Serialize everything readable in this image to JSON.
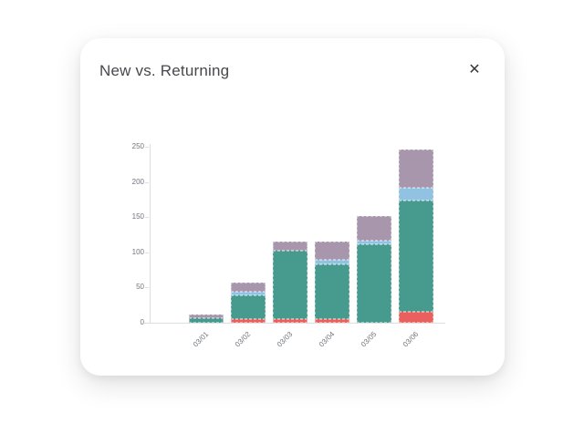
{
  "card": {
    "title": "New vs. Returning",
    "close_icon": "✕"
  },
  "chart_data": {
    "type": "bar",
    "stacked": true,
    "title": "New vs. Returning",
    "xlabel": "",
    "ylabel": "",
    "categories": [
      "03/01",
      "03/02",
      "03/03",
      "03/04",
      "03/05",
      "03/06"
    ],
    "series": [
      {
        "name": "red",
        "color": "#ea605e",
        "values": [
          0,
          5,
          5,
          5,
          0,
          15
        ]
      },
      {
        "name": "teal",
        "color": "#479b8e",
        "values": [
          7,
          34,
          97,
          78,
          112,
          158
        ]
      },
      {
        "name": "blue",
        "color": "#91c2e2",
        "values": [
          0,
          5,
          0,
          6,
          5,
          19
        ]
      },
      {
        "name": "purple",
        "color": "#a796ac",
        "values": [
          5,
          13,
          13,
          26,
          35,
          54
        ]
      }
    ],
    "totals": [
      12,
      57,
      115,
      115,
      152,
      246
    ],
    "y_ticks": [
      0,
      50,
      100,
      150,
      200,
      250
    ],
    "ylim": [
      0,
      250
    ],
    "x_tick_rotation": -45,
    "grid": false,
    "legend_position": "none",
    "axis_color": "#dcdee1",
    "tick_label_color": "#70747a"
  }
}
